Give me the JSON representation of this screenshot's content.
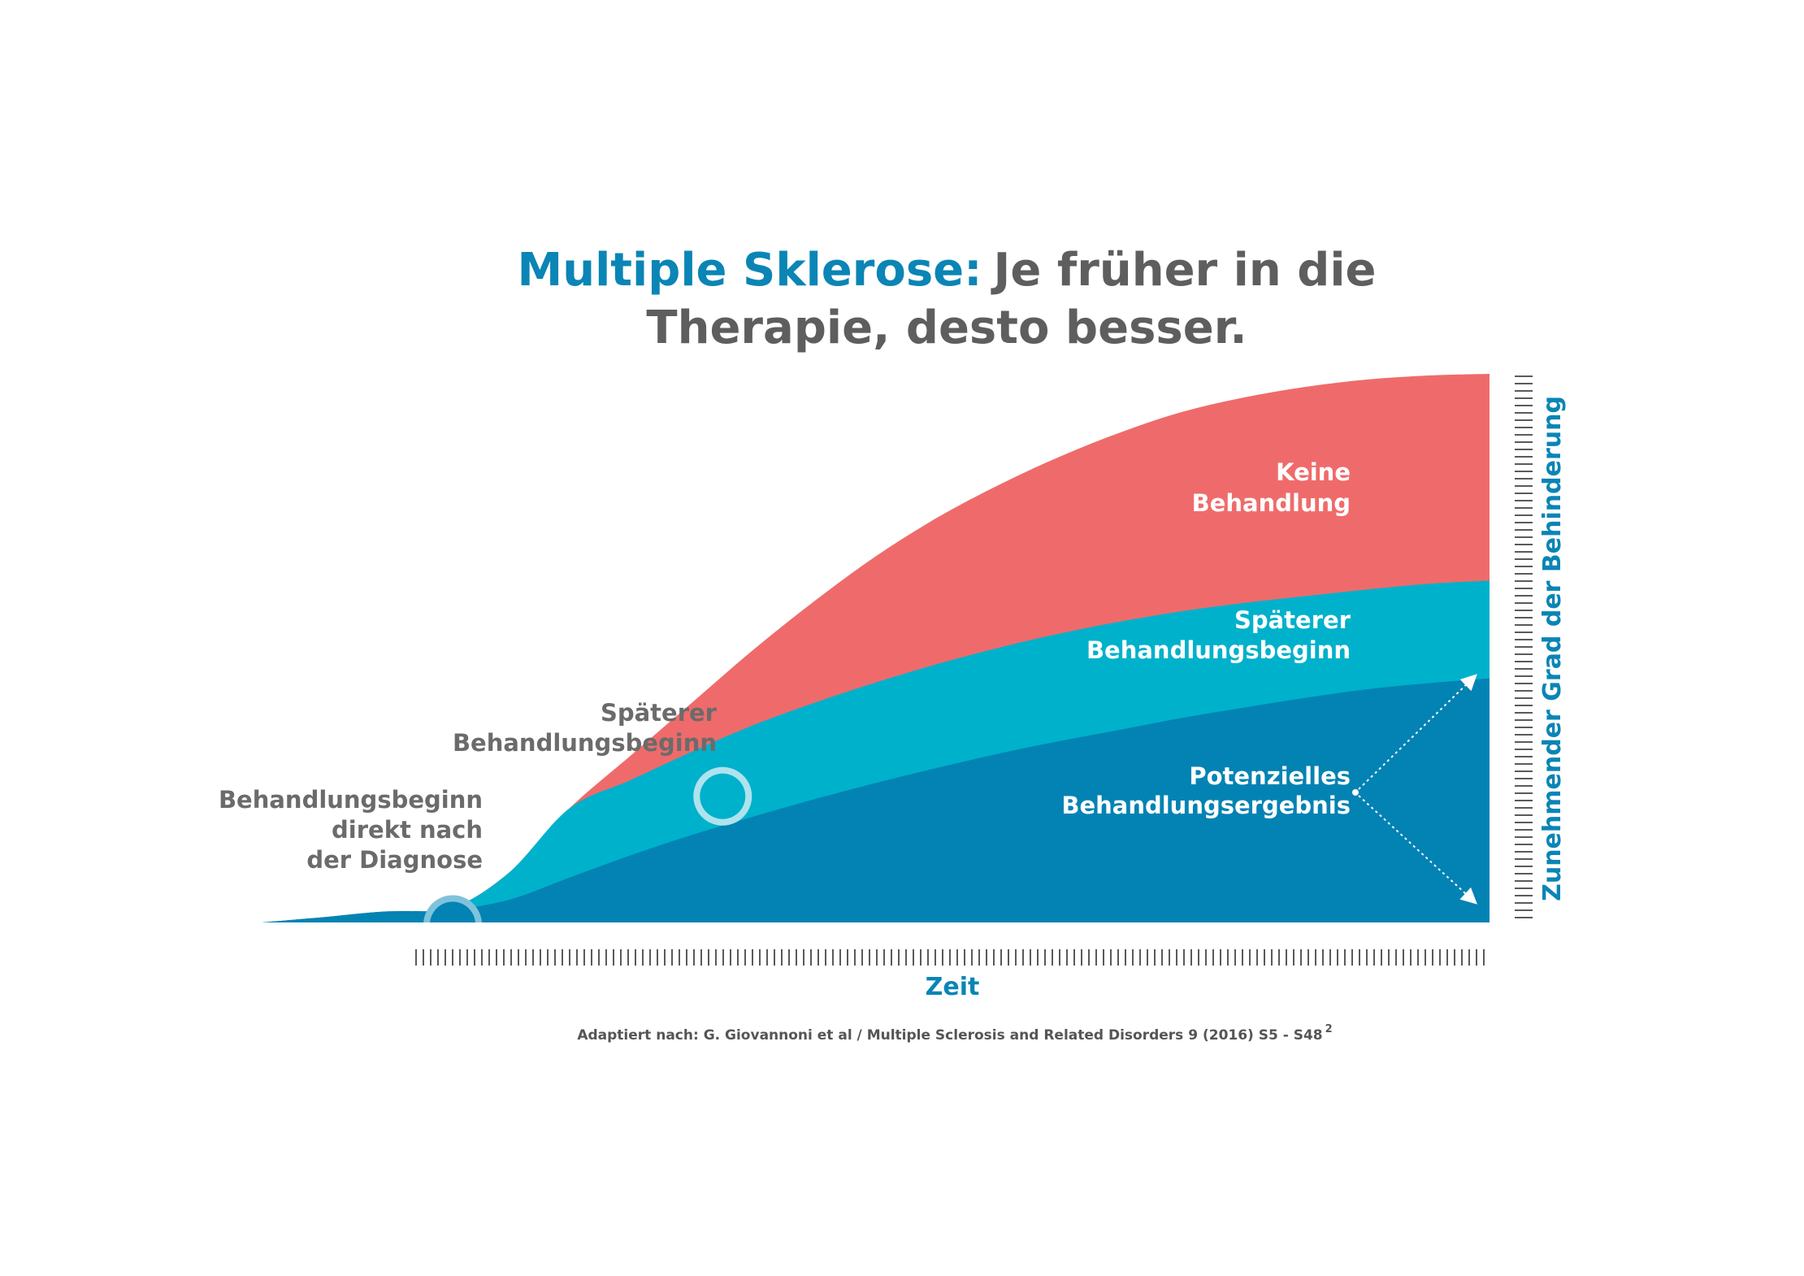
{
  "chart_data": {
    "type": "area",
    "title_accent": "Multiple Sklerose:",
    "title_rest_line1": "Je früher in die",
    "title_line2": "Therapie, desto besser.",
    "xlabel": "Zeit",
    "ylabel": "Zunehmender Grad der Behinderung",
    "source": "Adaptiert nach: G. Giovannoni et al / Multiple Sclerosis and Related Disorders 9 (2016) S5 - S48",
    "source_sup": "2",
    "colors": {
      "none": "#ef6b6b",
      "later": "#00b1cb",
      "early": "#0383b3",
      "accent": "#0a85b5",
      "gray_text": "#5e5e5e"
    },
    "series": [
      {
        "key": "early",
        "x": [
          0,
          5,
          10,
          15,
          20,
          25,
          30,
          35,
          40,
          45,
          50,
          55,
          60,
          65,
          70,
          75,
          80,
          85,
          90,
          95,
          100
        ],
        "values": [
          0,
          1.3,
          2.7,
          3.0,
          5.5,
          11,
          16.5,
          21.5,
          26,
          30.3,
          34.3,
          38,
          41.5,
          44.6,
          47.4,
          50.3,
          52.8,
          55.2,
          57.3,
          58.8,
          60
        ]
      },
      {
        "key": "later",
        "x": [
          0,
          5,
          10,
          15,
          20,
          25,
          30,
          35,
          40,
          45,
          50,
          55,
          60,
          65,
          70,
          75,
          80,
          85,
          90,
          95,
          100
        ],
        "values": [
          0,
          1.3,
          2.7,
          3.0,
          12,
          28,
          35,
          42,
          48.5,
          54,
          59,
          63.5,
          67.5,
          71,
          74,
          76.5,
          78.5,
          80.2,
          81.8,
          83.2,
          84
        ]
      },
      {
        "key": "none",
        "x": [
          0,
          5,
          10,
          15,
          20,
          25,
          30,
          35,
          40,
          45,
          50,
          55,
          60,
          65,
          70,
          75,
          80,
          85,
          90,
          95,
          100
        ],
        "values": [
          0,
          1.3,
          2.7,
          3.0,
          12,
          28,
          41,
          54,
          67,
          79,
          90,
          99.5,
          107.5,
          114.5,
          120.5,
          125.5,
          129,
          131.6,
          133.4,
          134.4,
          134.8
        ]
      }
    ],
    "areas": [
      {
        "name_line1": "Keine",
        "name_line2": "Behandlung"
      },
      {
        "name_line1": "Späterer",
        "name_line2": "Behandlungsbeginn"
      },
      {
        "name_line1": "Potenzielles",
        "name_line2": "Behandlungsergebnis"
      }
    ],
    "annotations": {
      "early_start": [
        "Behandlungsbeginn",
        "direkt nach",
        "der Diagnose"
      ],
      "later_start": [
        "Späterer",
        "Behandlungsbeginn"
      ]
    },
    "markers": [
      {
        "name": "early-start",
        "x": 15.5,
        "y": 1.5
      },
      {
        "name": "later-start",
        "x": 37.5,
        "y": 33
      }
    ],
    "xlim": [
      0,
      100
    ],
    "ylim": [
      0,
      135
    ]
  }
}
